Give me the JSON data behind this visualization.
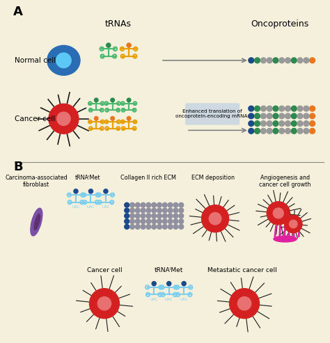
{
  "bg_color": "#f5f0dc",
  "panel_A_label": "A",
  "panel_B_label": "B",
  "trnas_label": "tRNAs",
  "oncoproteins_label": "Oncoproteins",
  "normal_cell_label": "Normal cell",
  "cancer_cell_label": "Cancer cell",
  "enhanced_text": "Enhanced translation of\noncoprotein-encoding mRNAs",
  "labels_B": [
    "Carcinoma-associated\nfibroblast",
    "tRNAᴵMet",
    "Collagen II rich ECM",
    "ECM deposition",
    "Angiogenesis and\ncancer cell growth"
  ],
  "labels_B2": [
    "Cancer cell",
    "tRNAᴵMet",
    "Metastatic cancer cell"
  ],
  "green_color": "#2d8a4e",
  "orange_color": "#e87722",
  "tRNA_green": "#4db870",
  "tRNA_orange": "#e8a000",
  "blue_cell": "#2a6db5",
  "light_blue_cell": "#5bc8f5",
  "red_cell": "#d42020",
  "purple_fibroblast": "#7b4fa6",
  "dark_purple": "#5a3070",
  "light_blue_trna": "#7ecfed",
  "dark_blue_dot": "#1a4a8a",
  "ecm_light": "#9090a0",
  "magenta": "#e020a0",
  "gray_dot": "#999999",
  "spike_color": "#1a1a1a",
  "inner_red": "#e87070",
  "arrow_box_color": "#cdd8e0"
}
